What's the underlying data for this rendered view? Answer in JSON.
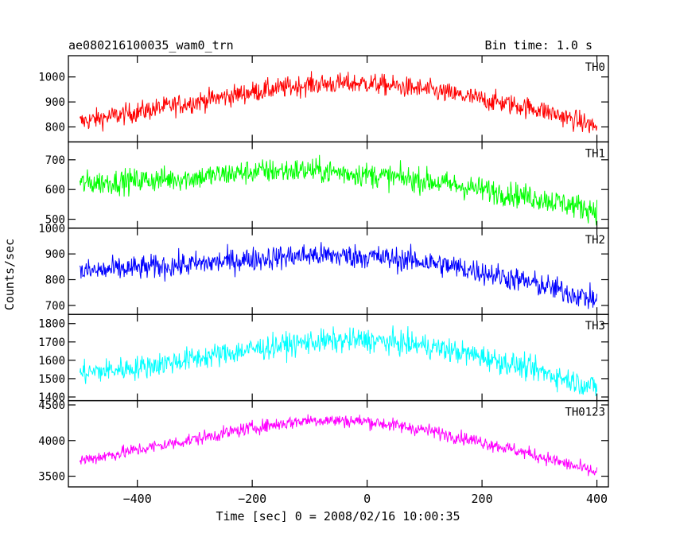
{
  "chart_data": {
    "type": "line",
    "title": "ae080216100035_wam0_trn",
    "subtitle": "Bin time: 1.0 s",
    "xlabel": "Time [sec] 0 = 2008/02/16 10:00:35",
    "ylabel": "Counts/sec",
    "xlim": [
      -520,
      420
    ],
    "x_ticks": [
      "−400",
      "−200",
      "0",
      "200",
      "400"
    ],
    "x_tick_values": [
      -400,
      -200,
      0,
      200,
      400
    ],
    "x_range_data": [
      -500,
      400
    ],
    "grid": false,
    "panels": [
      {
        "name": "TH0",
        "color": "#ff0000",
        "ylim": [
          740,
          1085
        ],
        "ticks": [
          800,
          900,
          1000
        ],
        "tick_labels": [
          "800",
          "900",
          "1000"
        ],
        "trend_x": [
          -500,
          -400,
          -300,
          -200,
          -100,
          0,
          100,
          200,
          300,
          400
        ],
        "trend_y": [
          820,
          860,
          900,
          940,
          970,
          975,
          950,
          910,
          870,
          800
        ],
        "noise": 35
      },
      {
        "name": "TH1",
        "color": "#00ff00",
        "ylim": [
          470,
          760
        ],
        "ticks": [
          500,
          600,
          700
        ],
        "tick_labels": [
          "500",
          "600",
          "700"
        ],
        "trend_x": [
          -500,
          -400,
          -300,
          -200,
          -100,
          0,
          100,
          200,
          300,
          400
        ],
        "trend_y": [
          620,
          630,
          640,
          660,
          665,
          650,
          630,
          600,
          570,
          530
        ],
        "noise": 35
      },
      {
        "name": "TH2",
        "color": "#0000ff",
        "ylim": [
          665,
          1000
        ],
        "ticks": [
          700,
          800,
          900,
          1000
        ],
        "tick_labels": [
          "700",
          "800",
          "900",
          "1000"
        ],
        "trend_x": [
          -500,
          -400,
          -300,
          -200,
          -100,
          0,
          100,
          200,
          300,
          400
        ],
        "trend_y": [
          830,
          845,
          860,
          880,
          895,
          890,
          870,
          830,
          780,
          720
        ],
        "noise": 40
      },
      {
        "name": "TH3",
        "color": "#00ffff",
        "ylim": [
          1380,
          1850
        ],
        "ticks": [
          1400,
          1500,
          1600,
          1700,
          1800
        ],
        "tick_labels": [
          "1400",
          "1500",
          "1600",
          "1700",
          "1800"
        ],
        "trend_x": [
          -500,
          -400,
          -300,
          -200,
          -100,
          0,
          100,
          200,
          300,
          400
        ],
        "trend_y": [
          1530,
          1560,
          1610,
          1660,
          1700,
          1710,
          1680,
          1620,
          1540,
          1450
        ],
        "noise": 55
      },
      {
        "name": "TH0123",
        "color": "#ff00ff",
        "ylim": [
          3350,
          4560
        ],
        "ticks": [
          3500,
          4000,
          4500
        ],
        "tick_labels": [
          "3500",
          "4000",
          "4500"
        ],
        "trend_x": [
          -500,
          -400,
          -300,
          -200,
          -100,
          0,
          100,
          200,
          300,
          400
        ],
        "trend_y": [
          3720,
          3870,
          4020,
          4180,
          4290,
          4270,
          4150,
          3980,
          3780,
          3550
        ],
        "noise": 80
      }
    ]
  }
}
